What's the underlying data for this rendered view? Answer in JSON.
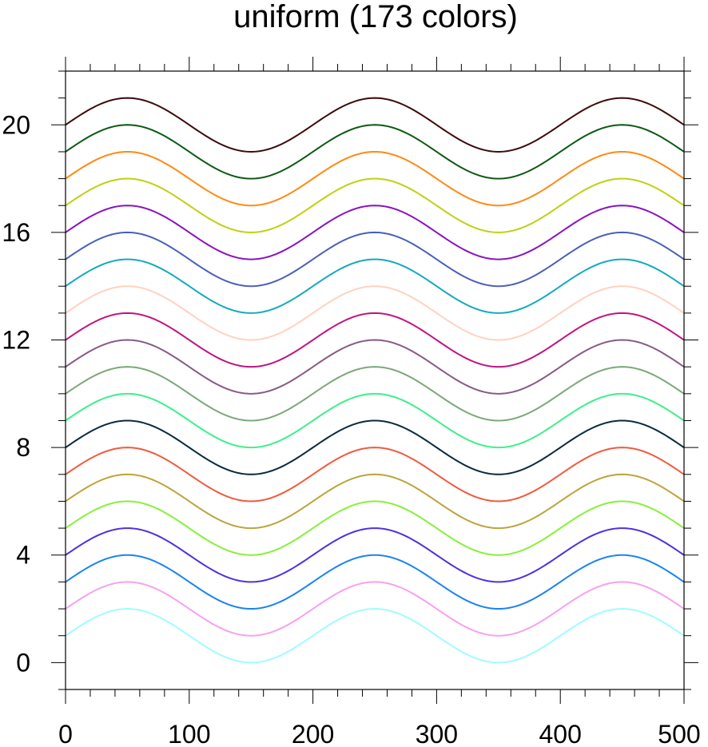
{
  "chart_data": {
    "type": "line",
    "title": "uniform (173 colors)",
    "xlabel": "",
    "ylabel": "",
    "xlim": [
      0,
      500
    ],
    "ylim": [
      -1,
      22
    ],
    "grid": false,
    "legend": "none",
    "x_ticks": [
      0,
      100,
      200,
      300,
      400,
      500
    ],
    "y_ticks": [
      0,
      4,
      8,
      12,
      16,
      20
    ],
    "x_tick_labels": [
      "0",
      "100",
      "200",
      "300",
      "400",
      "500"
    ],
    "y_tick_labels": [
      "0",
      "4",
      "8",
      "12",
      "16",
      "20"
    ],
    "x": [
      0,
      25,
      50,
      75,
      100,
      125,
      150,
      175,
      200,
      225,
      250,
      275,
      300,
      325,
      350,
      375,
      400,
      425,
      450,
      475,
      500
    ],
    "series": [
      {
        "color": "#9ffcff",
        "values": [
          1,
          1.707,
          2,
          1.707,
          1,
          0.293,
          0,
          0.293,
          1,
          1.707,
          2,
          1.707,
          1,
          0.293,
          0,
          0.293,
          1,
          1.707,
          2,
          1.707,
          1
        ]
      },
      {
        "color": "#f8a0f0",
        "values": [
          2,
          2.707,
          3,
          2.707,
          2,
          1.293,
          1,
          1.293,
          2,
          2.707,
          3,
          2.707,
          2,
          1.293,
          1,
          1.293,
          2,
          2.707,
          3,
          2.707,
          2
        ]
      },
      {
        "color": "#1a84f0",
        "values": [
          3,
          3.707,
          4,
          3.707,
          3,
          2.293,
          2,
          2.293,
          3,
          3.707,
          4,
          3.707,
          3,
          2.293,
          2,
          2.293,
          3,
          3.707,
          4,
          3.707,
          3
        ]
      },
      {
        "color": "#5030e0",
        "values": [
          4,
          4.707,
          5,
          4.707,
          4,
          3.293,
          3,
          3.293,
          4,
          4.707,
          5,
          4.707,
          4,
          3.293,
          3,
          3.293,
          4,
          4.707,
          5,
          4.707,
          4
        ]
      },
      {
        "color": "#88f03a",
        "values": [
          5,
          5.707,
          6,
          5.707,
          5,
          4.293,
          4,
          4.293,
          5,
          5.707,
          6,
          5.707,
          5,
          4.293,
          4,
          4.293,
          5,
          5.707,
          6,
          5.707,
          5
        ]
      },
      {
        "color": "#bca43c",
        "values": [
          6,
          6.707,
          7,
          6.707,
          6,
          5.293,
          5,
          5.293,
          6,
          6.707,
          7,
          6.707,
          6,
          5.293,
          5,
          5.293,
          6,
          6.707,
          7,
          6.707,
          6
        ]
      },
      {
        "color": "#f05a3c",
        "values": [
          7,
          7.707,
          8,
          7.707,
          7,
          6.293,
          6,
          6.293,
          7,
          7.707,
          8,
          7.707,
          7,
          6.293,
          6,
          6.293,
          7,
          7.707,
          8,
          7.707,
          7
        ]
      },
      {
        "color": "#0a2a3e",
        "values": [
          8,
          8.707,
          9,
          8.707,
          8,
          7.293,
          7,
          7.293,
          8,
          8.707,
          9,
          8.707,
          8,
          7.293,
          7,
          7.293,
          8,
          8.707,
          9,
          8.707,
          8
        ]
      },
      {
        "color": "#3cf08a",
        "values": [
          9,
          9.707,
          10,
          9.707,
          9,
          8.293,
          8,
          8.293,
          9,
          9.707,
          10,
          9.707,
          9,
          8.293,
          8,
          8.293,
          9,
          9.707,
          10,
          9.707,
          9
        ]
      },
      {
        "color": "#7aa878",
        "values": [
          10,
          10.707,
          11,
          10.707,
          10,
          9.293,
          9,
          9.293,
          10,
          10.707,
          11,
          10.707,
          10,
          9.293,
          9,
          9.293,
          10,
          10.707,
          11,
          10.707,
          10
        ]
      },
      {
        "color": "#865a86",
        "values": [
          11,
          11.707,
          12,
          11.707,
          11,
          10.293,
          10,
          10.293,
          11,
          11.707,
          12,
          11.707,
          11,
          10.293,
          10,
          10.293,
          11,
          11.707,
          12,
          11.707,
          11
        ]
      },
      {
        "color": "#c01480",
        "values": [
          12,
          12.707,
          13,
          12.707,
          12,
          11.293,
          11,
          11.293,
          12,
          12.707,
          13,
          12.707,
          12,
          11.293,
          11,
          11.293,
          12,
          12.707,
          13,
          12.707,
          12
        ]
      },
      {
        "color": "#ffd2c0",
        "values": [
          13,
          13.707,
          14,
          13.707,
          13,
          12.293,
          12,
          12.293,
          13,
          13.707,
          14,
          13.707,
          13,
          12.293,
          12,
          12.293,
          13,
          13.707,
          14,
          13.707,
          13
        ]
      },
      {
        "color": "#12aac0",
        "values": [
          14,
          14.707,
          15,
          14.707,
          14,
          13.293,
          13,
          13.293,
          14,
          14.707,
          15,
          14.707,
          14,
          13.293,
          13,
          13.293,
          14,
          14.707,
          15,
          14.707,
          14
        ]
      },
      {
        "color": "#4860b8",
        "values": [
          15,
          15.707,
          16,
          15.707,
          15,
          14.293,
          14,
          14.293,
          15,
          15.707,
          16,
          15.707,
          15,
          14.293,
          14,
          14.293,
          15,
          15.707,
          16,
          15.707,
          15
        ]
      },
      {
        "color": "#8a12c0",
        "values": [
          16,
          16.707,
          17,
          16.707,
          16,
          15.293,
          15,
          15.293,
          16,
          16.707,
          17,
          16.707,
          16,
          15.293,
          15,
          15.293,
          16,
          16.707,
          17,
          16.707,
          16
        ]
      },
      {
        "color": "#c0d012",
        "values": [
          17,
          17.707,
          18,
          17.707,
          17,
          16.293,
          16,
          16.293,
          17,
          17.707,
          18,
          17.707,
          17,
          16.293,
          16,
          16.293,
          17,
          17.707,
          18,
          17.707,
          17
        ]
      },
      {
        "color": "#ff8a12",
        "values": [
          18,
          18.707,
          19,
          18.707,
          18,
          17.293,
          17,
          17.293,
          18,
          18.707,
          19,
          18.707,
          18,
          17.293,
          17,
          17.293,
          18,
          18.707,
          19,
          18.707,
          18
        ]
      },
      {
        "color": "#0a5a12",
        "values": [
          19,
          19.707,
          20,
          19.707,
          19,
          18.293,
          18,
          18.293,
          19,
          19.707,
          20,
          19.707,
          19,
          18.293,
          18,
          18.293,
          19,
          19.707,
          20,
          19.707,
          19
        ]
      },
      {
        "color": "#3c0a0a",
        "values": [
          20,
          20.707,
          21,
          20.707,
          20,
          19.293,
          19,
          19.293,
          20,
          20.707,
          21,
          20.707,
          20,
          19.293,
          19,
          19.293,
          20,
          20.707,
          21,
          20.707,
          20
        ]
      }
    ]
  }
}
